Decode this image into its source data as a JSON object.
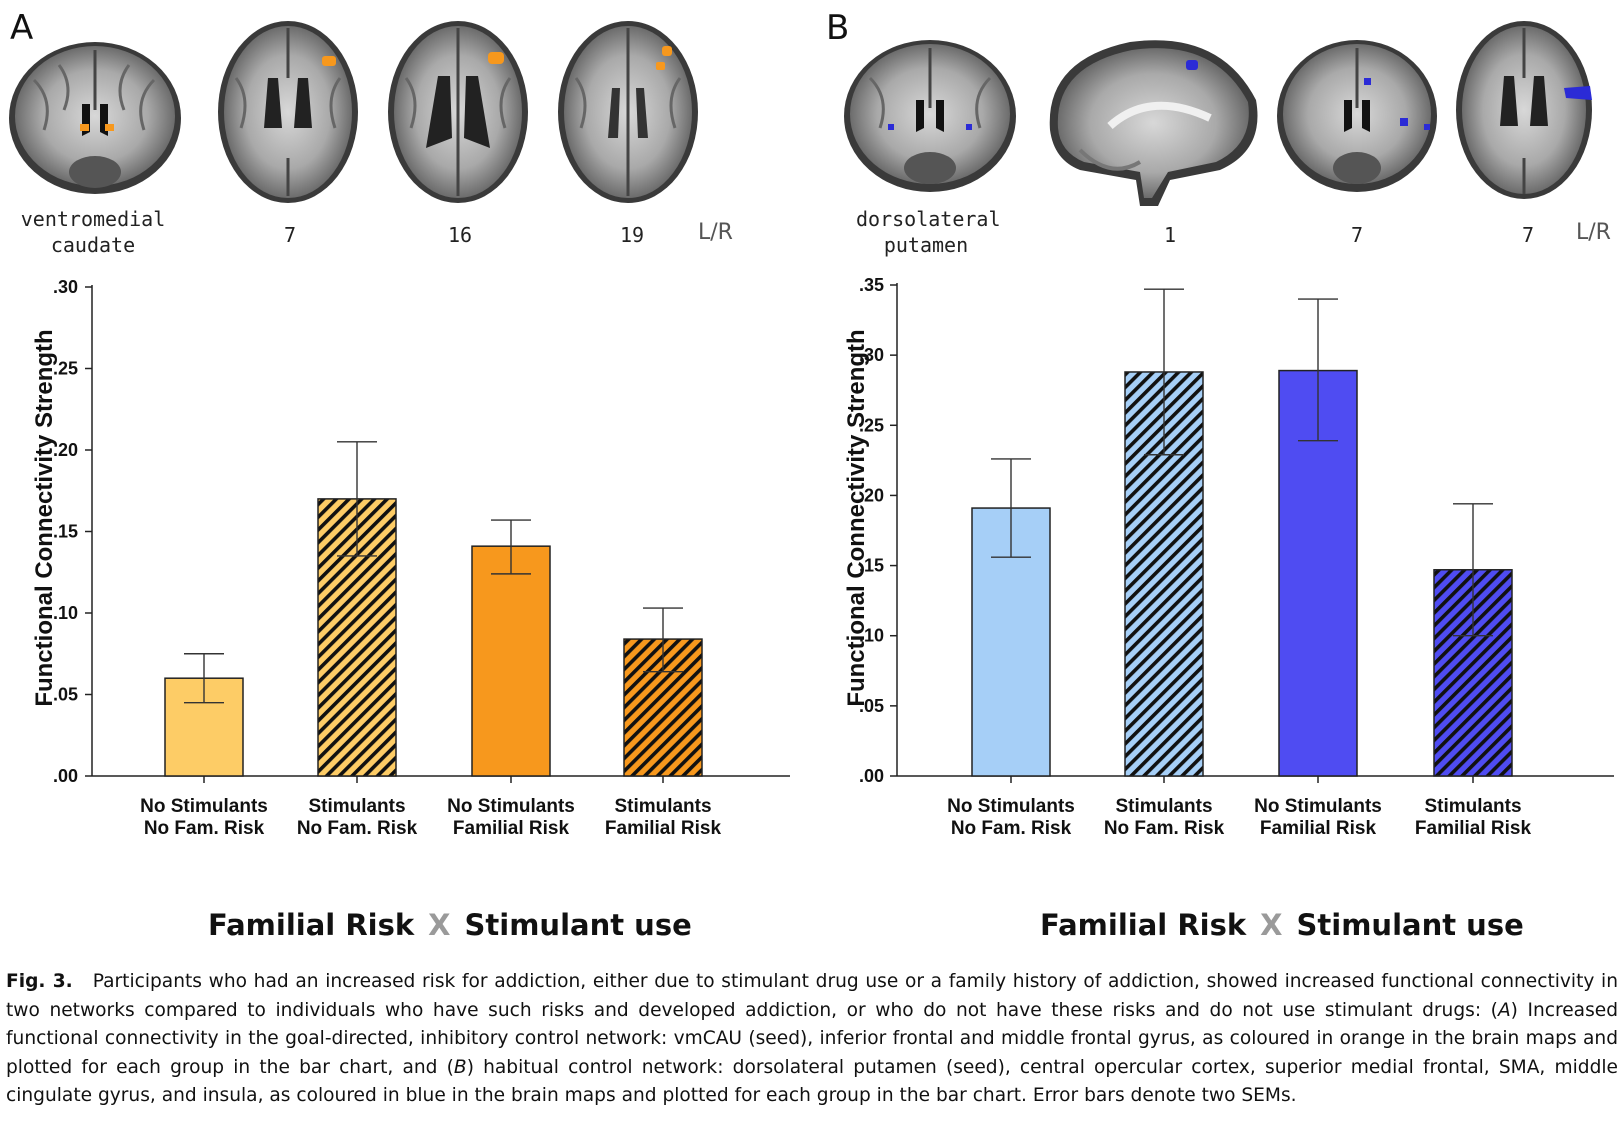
{
  "panels": [
    {
      "letter": "A",
      "seed_label": "ventromedial caudate",
      "slice_labels": [
        "7",
        "16",
        "19"
      ],
      "lr_label": "L/R",
      "factor_left": "Familial Risk",
      "factor_cross": "X",
      "factor_right": "Stimulant use"
    },
    {
      "letter": "B",
      "seed_label": "dorsolateral putamen",
      "slice_labels": [
        "1",
        "7",
        "7"
      ],
      "lr_label": "L/R",
      "factor_left": "Familial Risk",
      "factor_cross": "X",
      "factor_right": "Stimulant use"
    }
  ],
  "chart_data": [
    {
      "type": "bar",
      "panel": "A",
      "ylabel": "Functional Connectivity Strength",
      "ylim": [
        0,
        0.3
      ],
      "yticks": [
        ".00",
        ".05",
        ".10",
        ".15",
        ".20",
        ".25",
        ".30"
      ],
      "ytick_values": [
        0,
        0.05,
        0.1,
        0.15,
        0.2,
        0.25,
        0.3
      ],
      "categories": [
        [
          "No Stimulants",
          "No Fam. Risk"
        ],
        [
          "Stimulants",
          "No Fam. Risk"
        ],
        [
          "No Stimulants",
          "Familial Risk"
        ],
        [
          "Stimulants",
          "Familial Risk"
        ]
      ],
      "values": [
        0.06,
        0.17,
        0.141,
        0.084
      ],
      "error_low": [
        0.045,
        0.135,
        0.124,
        0.064
      ],
      "error_high": [
        0.075,
        0.205,
        0.157,
        0.103
      ],
      "colors": [
        "#fdcc66",
        "#fdcc66",
        "#f7981d",
        "#f7981d"
      ],
      "hatched": [
        false,
        true,
        false,
        true
      ]
    },
    {
      "type": "bar",
      "panel": "B",
      "ylabel": "Functional Connectivity Strength",
      "ylim": [
        0,
        0.35
      ],
      "yticks": [
        ".00",
        ".05",
        ".10",
        ".15",
        ".20",
        ".25",
        ".30",
        ".35"
      ],
      "ytick_values": [
        0,
        0.05,
        0.1,
        0.15,
        0.2,
        0.25,
        0.3,
        0.35
      ],
      "categories": [
        [
          "No Stimulants",
          "No Fam. Risk"
        ],
        [
          "Stimulants",
          "No Fam. Risk"
        ],
        [
          "No Stimulants",
          "Familial Risk"
        ],
        [
          "Stimulants",
          "Familial Risk"
        ]
      ],
      "values": [
        0.191,
        0.288,
        0.289,
        0.147
      ],
      "error_low": [
        0.156,
        0.229,
        0.239,
        0.1
      ],
      "error_high": [
        0.226,
        0.347,
        0.34,
        0.194
      ],
      "colors": [
        "#a6cff7",
        "#a6cff7",
        "#4f4cf2",
        "#4f4cf2"
      ],
      "hatched": [
        false,
        true,
        false,
        true
      ]
    }
  ],
  "caption": {
    "label": "Fig. 3.",
    "part1": "Participants who had an increased risk for addiction, either due to stimulant drug use or a family history of addiction, showed increased functional connectivity in two networks compared to individuals who have such risks and developed addiction, or who do not have these risks and do not use stimulant drugs: (",
    "a": "A",
    "part2": ") Increased functional connectivity in the goal-directed, inhibitory control network: vmCAU (seed), inferior frontal and middle frontal gyrus, as coloured in orange in the brain maps and plotted for each group in the bar chart, and (",
    "b": "B",
    "part3": ") habitual control network: dorsolateral putamen (seed), central opercular cortex, superior medial frontal, SMA, middle cingulate gyrus, and insula, as coloured in blue in the brain maps and plotted for each group in the bar chart. Error bars denote two SEMs."
  }
}
